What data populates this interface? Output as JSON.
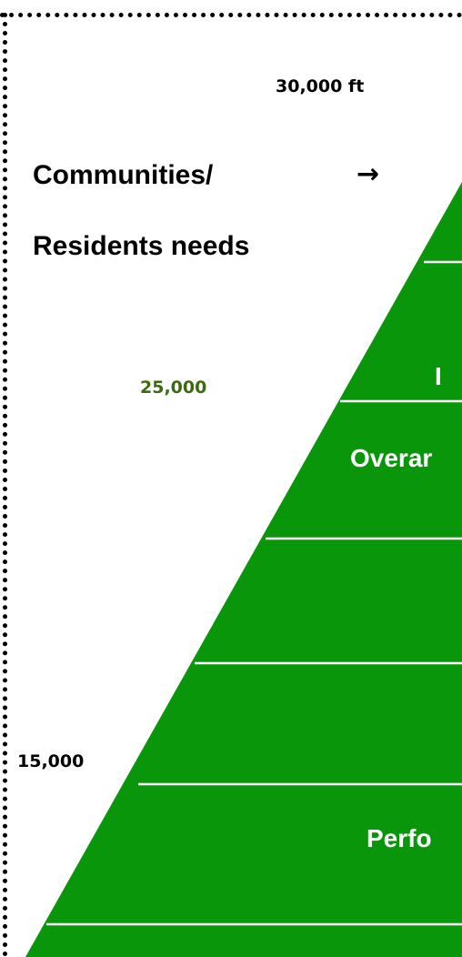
{
  "altitudes": {
    "top": "30,000 ft",
    "mid": "25,000",
    "low": "15,000"
  },
  "side_label": {
    "line1": "Communities/",
    "line2": "Residents needs",
    "arrow": "→"
  },
  "tiers": {
    "t2": "I",
    "t3": "Overar",
    "t6": "Perfo"
  },
  "colors": {
    "pyramid_fill": "#0a960a",
    "divider": "#ffffff",
    "altitude_green": "#3d6a10"
  }
}
